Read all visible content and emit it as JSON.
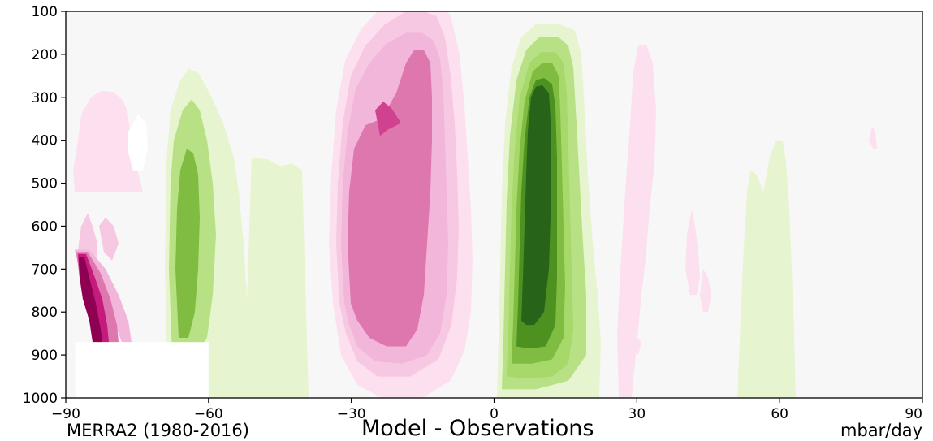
{
  "chart_data": {
    "type": "contour",
    "title": "",
    "top_text": "",
    "left_caption": "MERRA2 (1980-2016)",
    "center_caption": "Model - Observations",
    "units": "mbar/day",
    "xlabel": "",
    "ylabel": "",
    "x_ticks": [
      "−90",
      "−60",
      "−30",
      "0",
      "30",
      "60",
      "90"
    ],
    "y_ticks": [
      "100",
      "200",
      "300",
      "400",
      "500",
      "600",
      "700",
      "800",
      "900",
      "1000"
    ],
    "xlim": [
      -90,
      90
    ],
    "ylim": [
      1000,
      100
    ],
    "y_inverted": true,
    "colormap": "PiYG",
    "background_color": "#f7f7f7",
    "masked_region": {
      "lat_min": -88,
      "lat_max": -60,
      "p_min": 870,
      "p_max": 1000
    },
    "features": [
      {
        "name": "southern-pink-core",
        "lat": -88,
        "p": 790,
        "sign": "negative",
        "level": 7
      },
      {
        "name": "southern-pink-fringe",
        "lat": -80,
        "p": 560,
        "sign": "negative",
        "level": 1
      },
      {
        "name": "southern-green-band",
        "lat": -64,
        "p": 560,
        "sign": "positive",
        "level": 3
      },
      {
        "name": "tropical-pink-cell",
        "lat": -22,
        "p": 560,
        "sign": "negative",
        "level": 4
      },
      {
        "name": "tropical-pink-max",
        "lat": -23,
        "p": 740,
        "sign": "negative",
        "level": 5
      },
      {
        "name": "equatorial-green-cell",
        "lat": 8,
        "p": 560,
        "sign": "positive",
        "level": 7
      },
      {
        "name": "subtropical-pink-weak",
        "lat": 33,
        "p": 500,
        "sign": "negative",
        "level": 1
      },
      {
        "name": "midlatitude-pink-weak",
        "lat": 44,
        "p": 660,
        "sign": "negative",
        "level": 1
      },
      {
        "name": "northern-green-weak",
        "lat": 59,
        "p": 680,
        "sign": "positive",
        "level": 1
      },
      {
        "name": "polar-pink-speck",
        "lat": 79,
        "p": 840,
        "sign": "negative",
        "level": 1
      },
      {
        "name": "surface-green-strip",
        "lat": 40,
        "p": 970,
        "sign": "positive",
        "level": 1
      }
    ]
  }
}
